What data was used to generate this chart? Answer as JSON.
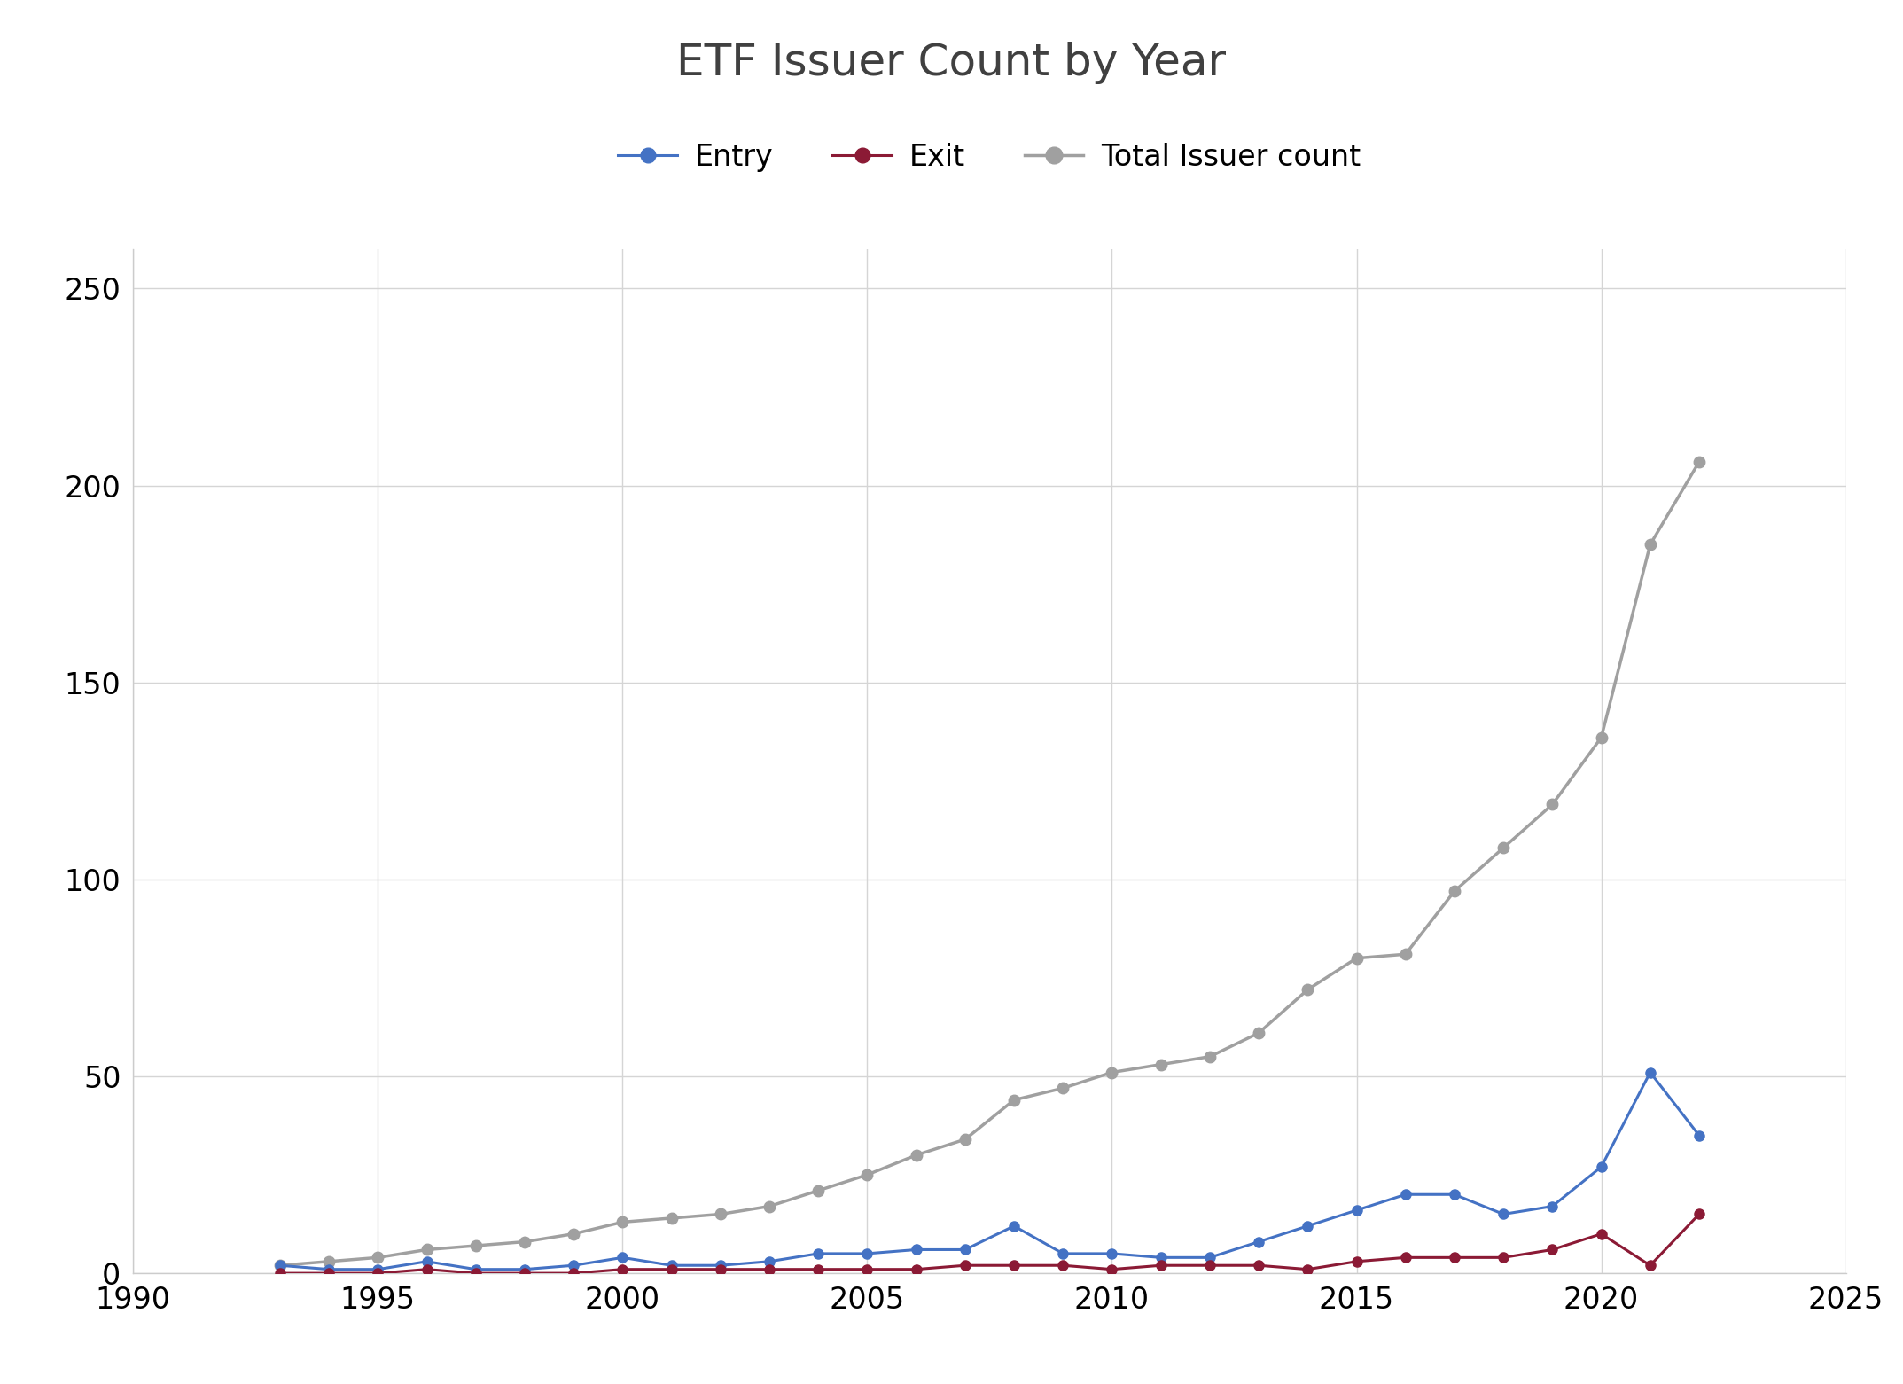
{
  "title": "ETF Issuer Count by Year",
  "years": [
    1993,
    1994,
    1995,
    1996,
    1997,
    1998,
    1999,
    2000,
    2001,
    2002,
    2003,
    2004,
    2005,
    2006,
    2007,
    2008,
    2009,
    2010,
    2011,
    2012,
    2013,
    2014,
    2015,
    2016,
    2017,
    2018,
    2019,
    2020,
    2021,
    2022
  ],
  "entry": [
    2,
    1,
    1,
    3,
    1,
    1,
    2,
    4,
    2,
    2,
    3,
    5,
    5,
    6,
    6,
    12,
    5,
    5,
    4,
    4,
    8,
    12,
    16,
    20,
    20,
    15,
    17,
    27,
    51,
    35
  ],
  "exit": [
    0,
    0,
    0,
    1,
    0,
    0,
    0,
    1,
    1,
    1,
    1,
    1,
    1,
    1,
    2,
    2,
    2,
    1,
    2,
    2,
    2,
    1,
    3,
    4,
    4,
    4,
    6,
    10,
    2,
    15
  ],
  "total": [
    2,
    3,
    4,
    6,
    7,
    8,
    10,
    13,
    14,
    15,
    17,
    21,
    25,
    30,
    34,
    44,
    47,
    51,
    53,
    55,
    61,
    72,
    80,
    81,
    97,
    108,
    119,
    136,
    185,
    206
  ],
  "entry_color": "#4472C4",
  "exit_color": "#8B1A35",
  "total_color": "#A0A0A0",
  "title_color": "#404040",
  "background_color": "#FFFFFF",
  "grid_color": "#D5D5D5",
  "xlim": [
    1990,
    2025
  ],
  "ylim": [
    0,
    260
  ],
  "yticks": [
    0,
    50,
    100,
    150,
    200,
    250
  ],
  "xticks": [
    1990,
    1995,
    2000,
    2005,
    2010,
    2015,
    2020,
    2025
  ],
  "legend_labels": [
    "Entry",
    "Exit",
    "Total Issuer count"
  ],
  "marker_size": 8,
  "line_width": 2.2,
  "title_fontsize": 36,
  "tick_fontsize": 24
}
